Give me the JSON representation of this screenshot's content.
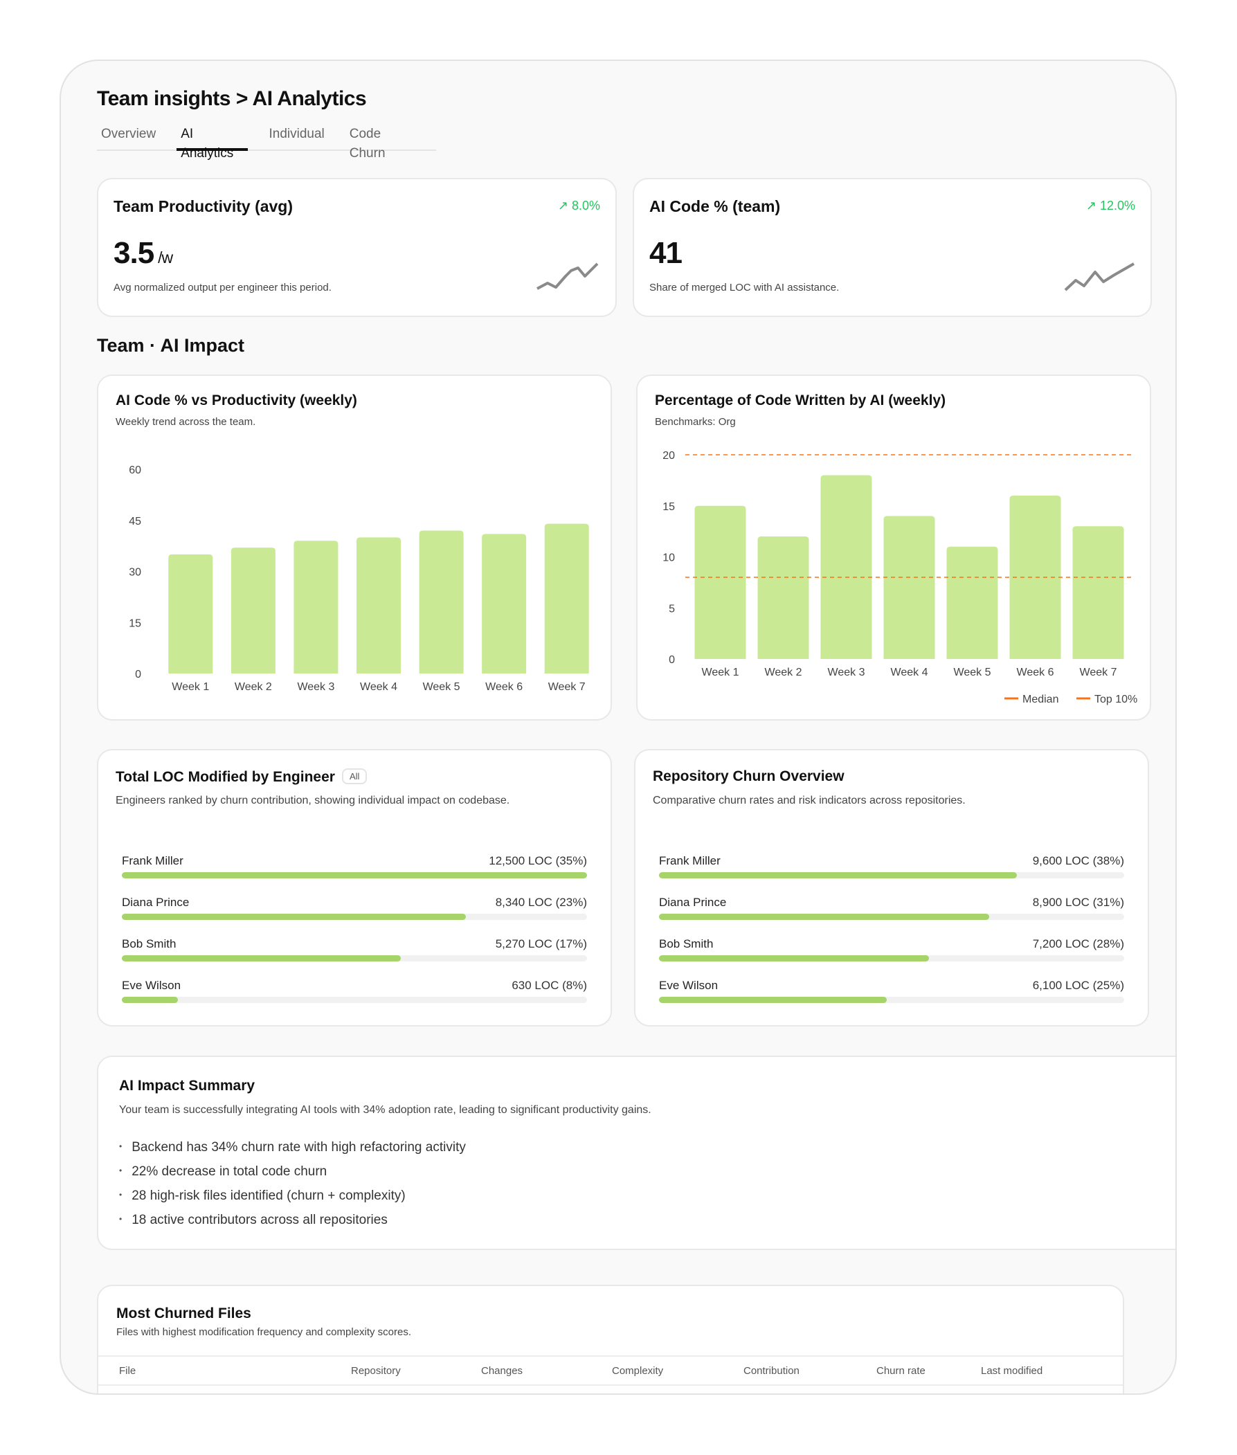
{
  "header": {
    "title": "Team insights > AI Analytics",
    "tabs": [
      {
        "label": "Overview"
      },
      {
        "label": "AI Analytics",
        "active": true
      },
      {
        "label": "Individual"
      },
      {
        "label": "Code Churn"
      }
    ]
  },
  "kpis": [
    {
      "title": "Team Productivity (avg)",
      "trend": "8.0%",
      "value": "3.5",
      "unit": "/w",
      "description": "Avg normalized output per engineer this period.",
      "trend_icon": "trending-up-icon"
    },
    {
      "title": "AI Code % (team)",
      "trend": "12.0%",
      "value": "41",
      "unit": "",
      "description": "Share of merged LOC with AI assistance.",
      "trend_icon": "trending-up-icon"
    }
  ],
  "section_title": "Team · AI Impact",
  "colors": {
    "bar": "#cae994",
    "progress": "#a6d46a",
    "trend": "#22c55e",
    "benchmark": "#f97316",
    "sparkline": "#8a8a8a"
  },
  "chart_data": [
    {
      "type": "bar",
      "title": "AI Code % vs Productivity (weekly)",
      "subtitle": "Weekly trend across the team.",
      "categories": [
        "Week 1",
        "Week 2",
        "Week 3",
        "Week 4",
        "Week 5",
        "Week 6",
        "Week 7"
      ],
      "values": [
        35,
        37,
        39,
        40,
        42,
        41,
        44
      ],
      "ylim": [
        0,
        60
      ],
      "yticks": [
        0,
        15,
        30,
        45,
        60
      ],
      "grid": false
    },
    {
      "type": "bar",
      "title": "Percentage of Code Written by AI (weekly)",
      "subtitle": "Benchmarks: Org",
      "categories": [
        "Week 1",
        "Week 2",
        "Week 3",
        "Week 4",
        "Week 5",
        "Week 6",
        "Week 7"
      ],
      "values": [
        15,
        12,
        18,
        14,
        11,
        16,
        13
      ],
      "ylim": [
        0,
        20
      ],
      "yticks": [
        0,
        5,
        10,
        15,
        20
      ],
      "grid": false,
      "reference_lines": [
        {
          "name": "Median",
          "value": 8
        },
        {
          "name": "Top 10%",
          "value": 20
        }
      ],
      "legend": "bottom-right"
    }
  ],
  "loc_engineer": {
    "title": "Total LOC Modified by Engineer",
    "badge": "All",
    "subtitle": "Engineers ranked by churn contribution, showing individual impact on codebase.",
    "rows": [
      {
        "name": "Frank Miller",
        "value": "12,500 LOC (35%)",
        "fill": 100
      },
      {
        "name": "Diana Prince",
        "value": "8,340 LOC (23%)",
        "fill": 74
      },
      {
        "name": "Bob Smith",
        "value": "5,270 LOC (17%)",
        "fill": 60
      },
      {
        "name": "Eve Wilson",
        "value": "630 LOC (8%)",
        "fill": 12
      }
    ]
  },
  "repo_churn": {
    "title": "Repository Churn Overview",
    "subtitle": "Comparative churn rates and risk indicators across repositories.",
    "rows": [
      {
        "name": "Frank Miller",
        "value": "9,600 LOC (38%)",
        "fill": 77
      },
      {
        "name": "Diana Prince",
        "value": "8,900 LOC (31%)",
        "fill": 71
      },
      {
        "name": "Bob Smith",
        "value": "7,200 LOC (28%)",
        "fill": 58
      },
      {
        "name": "Eve Wilson",
        "value": "6,100 LOC (25%)",
        "fill": 49
      }
    ]
  },
  "summary": {
    "title": "AI Impact Summary",
    "text": "Your team is successfully integrating AI tools with 34% adoption rate, leading to significant productivity gains.",
    "bullets": [
      "Backend has 34% churn rate with high refactoring activity",
      "22% decrease in total code churn",
      "28 high-risk files identified (churn + complexity)",
      "18 active contributors across all repositories"
    ]
  },
  "files": {
    "title": "Most Churned Files",
    "subtitle": "Files with highest modification frequency and complexity scores.",
    "columns": [
      "File",
      "Repository",
      "Changes",
      "Complexity",
      "Contribution",
      "Churn rate",
      "Last modified"
    ]
  }
}
